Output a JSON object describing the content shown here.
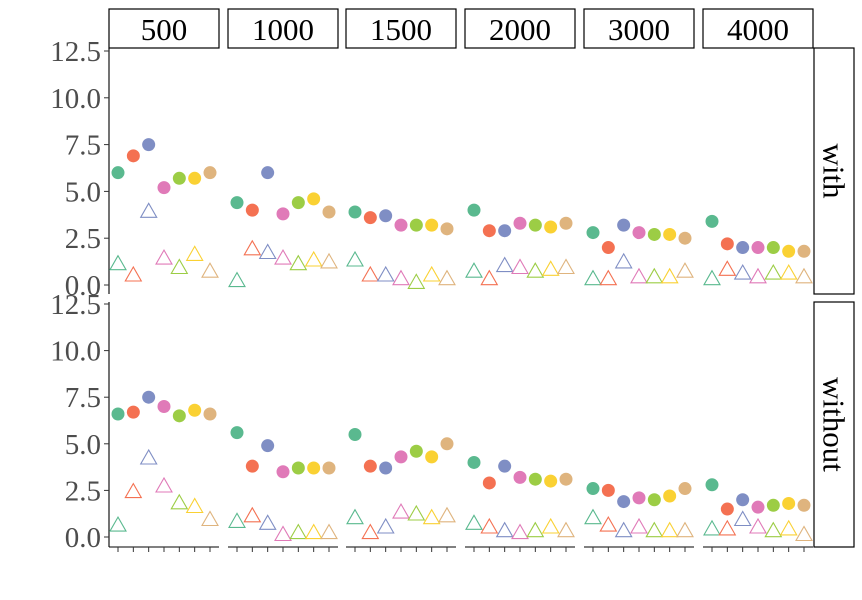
{
  "chart_data": {
    "type": "scatter",
    "title": "",
    "xlabel": "",
    "ylabel": "",
    "ylim": [
      0,
      12.5
    ],
    "y_ticks": [
      "0.0",
      "2.5",
      "5.0",
      "7.5",
      "10.0",
      "12.5"
    ],
    "grid": false,
    "legend": "none",
    "x_tick_labels": "none",
    "columns": [
      "500",
      "1000",
      "1500",
      "2000",
      "3000",
      "4000"
    ],
    "rows": [
      "with",
      "without"
    ],
    "series_count": 7,
    "colors": [
      "#5ab98f",
      "#f47152",
      "#7f8ec4",
      "#e07ab8",
      "#9ccd45",
      "#fad133",
      "#dfb47e"
    ],
    "filled_circles": {
      "with": [
        [
          6.0,
          6.9,
          7.5,
          5.2,
          5.7,
          5.7,
          6.0
        ],
        [
          4.4,
          4.0,
          6.0,
          3.8,
          4.4,
          4.6,
          3.9
        ],
        [
          3.9,
          3.6,
          3.7,
          3.2,
          3.2,
          3.2,
          3.0
        ],
        [
          4.0,
          2.9,
          2.9,
          3.3,
          3.2,
          3.1,
          3.3
        ],
        [
          2.8,
          2.0,
          3.2,
          2.8,
          2.7,
          2.7,
          2.5
        ],
        [
          3.4,
          2.2,
          2.0,
          2.0,
          2.0,
          1.8,
          1.8
        ]
      ],
      "without": [
        [
          6.6,
          6.7,
          7.5,
          7.0,
          6.5,
          6.8,
          6.6
        ],
        [
          5.6,
          3.8,
          4.9,
          3.5,
          3.7,
          3.7,
          3.7
        ],
        [
          5.5,
          3.8,
          3.7,
          4.3,
          4.6,
          4.3,
          5.0
        ],
        [
          4.0,
          2.9,
          3.8,
          3.2,
          3.1,
          3.0,
          3.1
        ],
        [
          2.6,
          2.5,
          1.9,
          2.1,
          2.0,
          2.2,
          2.6
        ],
        [
          2.8,
          1.5,
          2.0,
          1.6,
          1.7,
          1.8,
          1.7
        ]
      ]
    },
    "open_triangles": {
      "with": [
        [
          1.1,
          0.5,
          3.9,
          1.4,
          0.9,
          1.6,
          0.7
        ],
        [
          0.2,
          1.9,
          1.7,
          1.4,
          1.1,
          1.3,
          1.2
        ],
        [
          1.3,
          0.5,
          0.5,
          0.3,
          0.1,
          0.5,
          0.3
        ],
        [
          0.7,
          0.3,
          1.0,
          0.9,
          0.7,
          0.8,
          0.9
        ],
        [
          0.3,
          0.3,
          1.2,
          0.4,
          0.4,
          0.4,
          0.7
        ],
        [
          0.3,
          0.8,
          0.6,
          0.4,
          0.6,
          0.6,
          0.4
        ]
      ],
      "without": [
        [
          0.6,
          2.4,
          4.2,
          2.7,
          1.8,
          1.6,
          0.9
        ],
        [
          0.8,
          1.1,
          0.7,
          0.1,
          0.2,
          0.2,
          0.2
        ],
        [
          1.0,
          0.2,
          0.5,
          1.3,
          1.2,
          1.0,
          1.1
        ],
        [
          0.7,
          0.5,
          0.3,
          0.2,
          0.3,
          0.5,
          0.3
        ],
        [
          1.0,
          0.6,
          0.3,
          0.5,
          0.3,
          0.3,
          0.3
        ],
        [
          0.4,
          0.4,
          0.9,
          0.5,
          0.3,
          0.4,
          0.1
        ]
      ]
    }
  }
}
